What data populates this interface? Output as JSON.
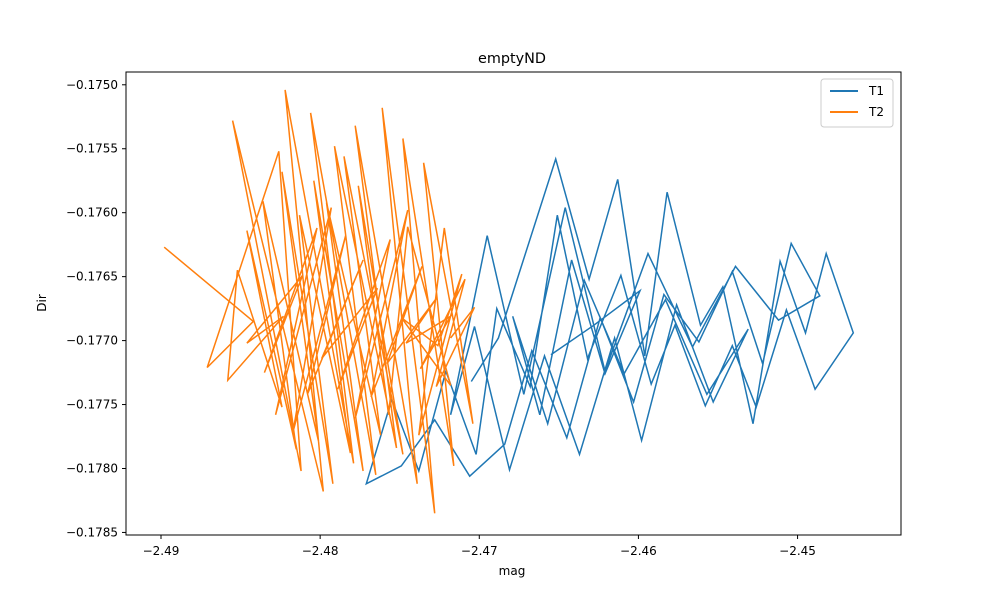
{
  "chart_data": {
    "type": "line",
    "title": "emptyND",
    "xlabel": "mag",
    "ylabel": "Dir",
    "xlim": [
      -2.4922,
      -2.4435
    ],
    "ylim": [
      -0.17852,
      -0.1749
    ],
    "xticks": [
      -2.49,
      -2.48,
      -2.47,
      -2.46,
      -2.45
    ],
    "xtick_labels": [
      "−2.49",
      "−2.48",
      "−2.47",
      "−2.46",
      "−2.45"
    ],
    "yticks": [
      -0.1785,
      -0.178,
      -0.1775,
      -0.177,
      -0.1765,
      -0.176,
      -0.1755,
      -0.175
    ],
    "ytick_labels": [
      "−0.1785",
      "−0.1780",
      "−0.1775",
      "−0.1770",
      "−0.1765",
      "−0.1760",
      "−0.1755",
      "−0.1750"
    ],
    "grid": false,
    "legend_position": "top-right",
    "series": [
      {
        "name": "T1",
        "color": "#1f77b4",
        "x": [
          -2.4705,
          -2.4688,
          -2.4652,
          -2.4631,
          -2.4613,
          -2.4596,
          -2.4582,
          -2.4561,
          -2.4547,
          -2.4528,
          -2.4511,
          -2.4495,
          -2.4482,
          -2.4465,
          -2.4489,
          -2.4507,
          -2.4526,
          -2.4541,
          -2.4558,
          -2.4577,
          -2.4592,
          -2.4611,
          -2.4632,
          -2.4651,
          -2.4668,
          -2.4689,
          -2.4702,
          -2.4721,
          -2.4738,
          -2.4755,
          -2.4771,
          -2.4749,
          -2.4728,
          -2.4706,
          -2.4684,
          -2.4667,
          -2.4645,
          -2.4624,
          -2.4603,
          -2.4584,
          -2.4562,
          -2.4541,
          -2.4522,
          -2.4504,
          -2.4486,
          -2.4512,
          -2.4539,
          -2.4566,
          -2.4594,
          -2.4621,
          -2.4646,
          -2.4672,
          -2.4695,
          -2.4718,
          -2.4703,
          -2.4681,
          -2.4659,
          -2.4637,
          -2.4615,
          -2.4598,
          -2.4576,
          -2.4553,
          -2.4531,
          -2.4557,
          -2.4583,
          -2.4609,
          -2.4634,
          -2.4657,
          -2.4679,
          -2.4662,
          -2.4642,
          -2.4621,
          -2.4599,
          -2.4628,
          -2.4655
        ],
        "y": [
          -0.17732,
          -0.17698,
          -0.17558,
          -0.17652,
          -0.17574,
          -0.17712,
          -0.17584,
          -0.17688,
          -0.17658,
          -0.17765,
          -0.17638,
          -0.17694,
          -0.17632,
          -0.17694,
          -0.17738,
          -0.17676,
          -0.17752,
          -0.17704,
          -0.17751,
          -0.17688,
          -0.17734,
          -0.17649,
          -0.17714,
          -0.17602,
          -0.17736,
          -0.17675,
          -0.17789,
          -0.17724,
          -0.17802,
          -0.17746,
          -0.17812,
          -0.17798,
          -0.17762,
          -0.17806,
          -0.17781,
          -0.17708,
          -0.17776,
          -0.17682,
          -0.17748,
          -0.17664,
          -0.17701,
          -0.17646,
          -0.17718,
          -0.17624,
          -0.17665,
          -0.17684,
          -0.17642,
          -0.17705,
          -0.17632,
          -0.17724,
          -0.17596,
          -0.17742,
          -0.17618,
          -0.17758,
          -0.17689,
          -0.17801,
          -0.17712,
          -0.17789,
          -0.17698,
          -0.17778,
          -0.17672,
          -0.17748,
          -0.17691,
          -0.17742,
          -0.17668,
          -0.17726,
          -0.17653,
          -0.17765,
          -0.17681,
          -0.17758,
          -0.17637,
          -0.17726,
          -0.17661,
          -0.17688,
          -0.17711
        ]
      },
      {
        "name": "T2",
        "color": "#ff7f0e",
        "x": [
          -2.4898,
          -2.4842,
          -2.4871,
          -2.4826,
          -2.4812,
          -2.4855,
          -2.4798,
          -2.4822,
          -2.4779,
          -2.4806,
          -2.4765,
          -2.4791,
          -2.4752,
          -2.4778,
          -2.4739,
          -2.4761,
          -2.4728,
          -2.4748,
          -2.4716,
          -2.4735,
          -2.4704,
          -2.4722,
          -2.4738,
          -2.4711,
          -2.4726,
          -2.4749,
          -2.4718,
          -2.4745,
          -2.4757,
          -2.4776,
          -2.4748,
          -2.4785,
          -2.4762,
          -2.4796,
          -2.4773,
          -2.4804,
          -2.4781,
          -2.4813,
          -2.4792,
          -2.4824,
          -2.4801,
          -2.4836,
          -2.4815,
          -2.4846,
          -2.4824,
          -2.4852,
          -2.4858,
          -2.4823,
          -2.4846,
          -2.4811,
          -2.4835,
          -2.4802,
          -2.4828,
          -2.4793,
          -2.4817,
          -2.4784,
          -2.4808,
          -2.4773,
          -2.4799,
          -2.4764,
          -2.4789,
          -2.4756,
          -2.4778,
          -2.4745,
          -2.4768,
          -2.4736,
          -2.4758,
          -2.4727,
          -2.4746,
          -2.4718,
          -2.4737,
          -2.4709,
          -2.4727,
          -2.4703,
          -2.4718
        ],
        "y": [
          -0.17627,
          -0.17685,
          -0.17721,
          -0.17552,
          -0.17802,
          -0.17528,
          -0.17818,
          -0.17504,
          -0.17796,
          -0.17522,
          -0.17805,
          -0.17548,
          -0.17784,
          -0.17532,
          -0.17812,
          -0.17518,
          -0.17835,
          -0.17542,
          -0.17798,
          -0.17561,
          -0.17765,
          -0.17612,
          -0.17774,
          -0.17648,
          -0.17704,
          -0.17682,
          -0.17735,
          -0.17611,
          -0.17758,
          -0.17579,
          -0.17789,
          -0.17556,
          -0.17774,
          -0.17592,
          -0.17802,
          -0.17575,
          -0.17788,
          -0.17602,
          -0.17812,
          -0.17568,
          -0.17779,
          -0.17591,
          -0.17785,
          -0.17614,
          -0.17752,
          -0.17645,
          -0.17731,
          -0.17681,
          -0.17702,
          -0.17649,
          -0.17725,
          -0.17612,
          -0.17758,
          -0.17596,
          -0.17771,
          -0.17618,
          -0.17742,
          -0.17637,
          -0.17714,
          -0.17659,
          -0.17738,
          -0.17621,
          -0.17761,
          -0.17598,
          -0.17744,
          -0.17642,
          -0.17718,
          -0.17667,
          -0.17702,
          -0.17681,
          -0.17722,
          -0.17652,
          -0.17736,
          -0.17674,
          -0.17698
        ]
      }
    ]
  }
}
